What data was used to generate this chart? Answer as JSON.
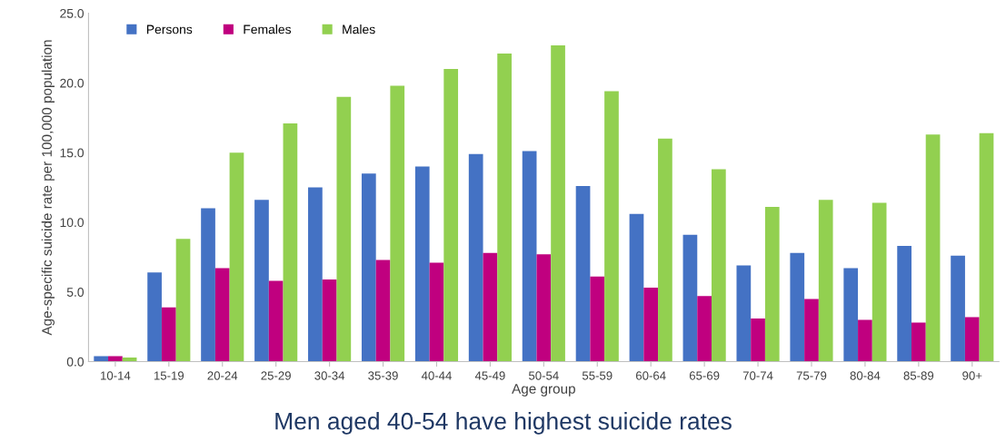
{
  "chart_data": {
    "type": "bar",
    "title": "Men aged 40-54 have highest suicide rates",
    "xlabel": "Age group",
    "ylabel": "Age-specific suicide rate per 100,000 population",
    "categories": [
      "10-14",
      "15-19",
      "20-24",
      "25-29",
      "30-34",
      "35-39",
      "40-44",
      "45-49",
      "50-54",
      "55-59",
      "60-64",
      "65-69",
      "70-74",
      "75-79",
      "80-84",
      "85-89",
      "90+"
    ],
    "series": [
      {
        "name": "Persons",
        "color": "#4472c4",
        "values": [
          0.4,
          6.4,
          11.0,
          11.6,
          12.5,
          13.5,
          14.0,
          14.9,
          15.1,
          12.6,
          10.6,
          9.1,
          6.9,
          7.8,
          6.7,
          8.3,
          7.6
        ]
      },
      {
        "name": "Females",
        "color": "#c0007f",
        "values": [
          0.4,
          3.9,
          6.7,
          5.8,
          5.9,
          7.3,
          7.1,
          7.8,
          7.7,
          6.1,
          5.3,
          4.7,
          3.1,
          4.5,
          3.0,
          2.8,
          3.2
        ]
      },
      {
        "name": "Males",
        "color": "#92d050",
        "values": [
          0.3,
          8.8,
          15.0,
          17.1,
          19.0,
          19.8,
          21.0,
          22.1,
          22.7,
          19.4,
          16.0,
          13.8,
          11.1,
          11.6,
          11.4,
          16.3,
          16.4
        ]
      }
    ],
    "ylim": [
      0,
      25
    ],
    "yticks": [
      {
        "value": 0,
        "label": "0.0"
      },
      {
        "value": 5,
        "label": "5.0"
      },
      {
        "value": 10,
        "label": "10.0"
      },
      {
        "value": 15,
        "label": "15.0"
      },
      {
        "value": 20,
        "label": "20.0"
      },
      {
        "value": 25,
        "label": "25.0"
      }
    ],
    "legend": "top left"
  }
}
